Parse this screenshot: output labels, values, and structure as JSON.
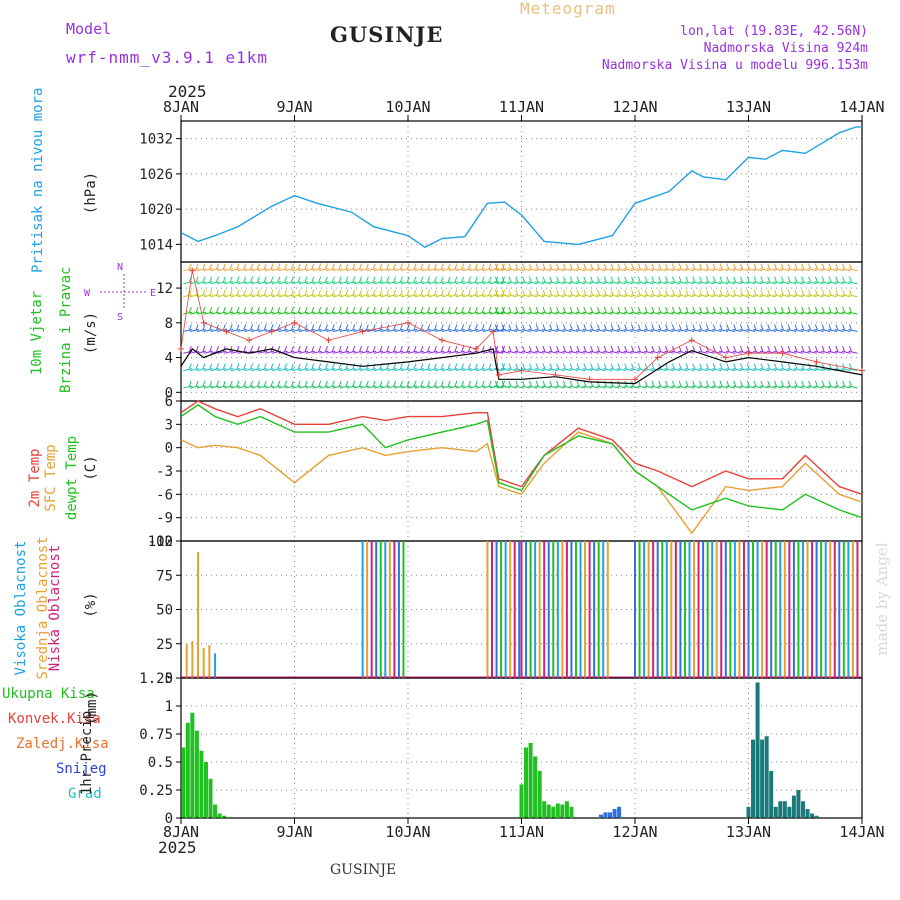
{
  "header": {
    "model_label": "Model",
    "model_name": "wrf-nmm_v3.9.1 e1km",
    "location": "GUSINJE",
    "chart_kind": "Meteogram",
    "lonlat": "lon,lat (19.83E, 42.56N)",
    "elevation": "Nadmorska Visina 924m",
    "model_elevation": "Nadmorska Visina u modelu 996.153m",
    "footer_location": "GUSINJE",
    "watermark": "made by Angel",
    "year_top": "2025",
    "year_bottom": "2025"
  },
  "colors": {
    "pressure": "#1fa0e6",
    "red": "#e8413a",
    "orange": "#e8a033",
    "green": "#20c020",
    "purple": "#9a30e0",
    "magenta": "#d0207a",
    "blue": "#2f6fe0",
    "cyan": "#20c0c0",
    "grid": "#888888"
  },
  "chart_data": [
    {
      "type": "line",
      "name": "pressure",
      "ylabel_main": "Pritisak na nivou mora",
      "ylabel_unit": "(hPa)",
      "ylim": [
        1011,
        1035
      ],
      "yticks": [
        1014,
        1020,
        1026,
        1032
      ],
      "x": [
        0,
        0.15,
        0.3,
        0.5,
        0.8,
        1.0,
        1.2,
        1.5,
        1.7,
        2.0,
        2.15,
        2.3,
        2.5,
        2.7,
        2.85,
        3.0,
        3.2,
        3.5,
        3.8,
        4.0,
        4.3,
        4.5,
        4.6,
        4.8,
        5.0,
        5.15,
        5.3,
        5.5,
        5.8,
        5.95,
        6.0
      ],
      "values": [
        1016,
        1014.5,
        1015.5,
        1017,
        1020.5,
        1022.3,
        1021,
        1019.5,
        1017,
        1015.5,
        1013.5,
        1015,
        1015.3,
        1021,
        1021.2,
        1019,
        1014.5,
        1014,
        1015.5,
        1021,
        1023,
        1026.5,
        1025.5,
        1025,
        1028.8,
        1028.5,
        1030,
        1029.5,
        1033,
        1034,
        1034
      ]
    },
    {
      "type": "line",
      "name": "wind",
      "ylabel_main": "10m Vjetar",
      "ylabel_second": "Brzina i Pravac",
      "ylabel_unit": "(m/s)",
      "compass": {
        "n": "N",
        "s": "S",
        "w": "W",
        "e": "E"
      },
      "ylim": [
        -1,
        15
      ],
      "yticks": [
        0,
        4,
        8,
        12
      ],
      "x": [
        0,
        0.1,
        0.2,
        0.4,
        0.6,
        0.8,
        1.0,
        1.3,
        1.6,
        2.0,
        2.3,
        2.6,
        2.75,
        2.8,
        3.0,
        3.3,
        3.6,
        4.0,
        4.3,
        4.5,
        4.8,
        5.0,
        5.3,
        5.6,
        6.0
      ],
      "values": [
        3,
        5,
        4,
        5,
        4.5,
        5,
        4,
        3.5,
        3,
        3.5,
        4,
        4.5,
        5,
        1.5,
        1.5,
        1.8,
        1.2,
        1.0,
        3.5,
        4.8,
        3.5,
        4,
        3.5,
        3,
        2
      ],
      "gust_x": [
        0,
        0.1,
        0.2,
        0.4,
        0.6,
        0.8,
        1.0,
        1.3,
        1.6,
        2.0,
        2.3,
        2.6,
        2.75,
        2.8,
        3.0,
        3.3,
        3.6,
        4.0,
        4.2,
        4.5,
        4.8,
        5.0,
        5.3,
        5.6,
        6.0
      ],
      "gust_values": [
        5,
        14,
        8,
        7,
        6,
        7,
        8,
        6,
        7,
        8,
        6,
        5,
        7,
        2,
        2.5,
        2,
        1.5,
        1.5,
        4,
        6,
        4,
        4.5,
        4.5,
        3.5,
        2.5
      ],
      "barb_levels": [
        0.5,
        2.5,
        4.5,
        7,
        9,
        11,
        12.5,
        14
      ],
      "barb_colors": [
        "#20c060",
        "#20c0c0",
        "#9a30e0",
        "#2f6fe0",
        "#20c020",
        "#c8c820",
        "#20d080",
        "#e8a033"
      ]
    },
    {
      "type": "line",
      "name": "temperature",
      "ylabel_main": "2m Temp",
      "ylabel_second": "SFC Temp",
      "ylabel_third": "dewpt Temp",
      "ylabel_unit": "(C)",
      "ylim": [
        -12,
        6
      ],
      "yticks": [
        -12,
        -9,
        -6,
        -3,
        0,
        3,
        6
      ],
      "x": [
        0,
        0.15,
        0.3,
        0.5,
        0.7,
        1.0,
        1.3,
        1.6,
        1.8,
        2.0,
        2.3,
        2.6,
        2.7,
        2.8,
        3.0,
        3.2,
        3.5,
        3.8,
        4.0,
        4.2,
        4.5,
        4.8,
        5.0,
        5.3,
        5.5,
        5.8,
        6.0
      ],
      "series": [
        {
          "name": "2m Temp",
          "values": [
            4.5,
            6,
            5,
            4,
            5,
            3,
            3,
            4,
            3.5,
            4,
            4,
            4.5,
            4.5,
            -4,
            -5,
            -1,
            2.5,
            1,
            -2,
            -3,
            -5,
            -3,
            -4,
            -4,
            -1,
            -5,
            -6
          ]
        },
        {
          "name": "SFC Temp",
          "values": [
            1,
            0,
            0.3,
            0,
            -1,
            -4.5,
            -1,
            0,
            -1,
            -0.5,
            0,
            -0.5,
            0.5,
            -5,
            -6,
            -2,
            2,
            0.5,
            -3,
            -5,
            -11,
            -5,
            -5.5,
            -5,
            -2,
            -6,
            -7
          ]
        },
        {
          "name": "dewpt Temp",
          "values": [
            4,
            5.5,
            4,
            3,
            4,
            2,
            2,
            3,
            0,
            1,
            2,
            3,
            3.5,
            -4.5,
            -5.5,
            -1,
            1.5,
            0.5,
            -3,
            -5,
            -8,
            -6.5,
            -7.5,
            -8,
            -6,
            -8,
            -9
          ]
        }
      ]
    },
    {
      "type": "bar",
      "name": "cloud_cover",
      "ylabel_main": "Visoka Oblacnost",
      "ylabel_second": "Srednja Oblacnost",
      "ylabel_third": "Niska Oblacnost",
      "ylabel_unit": "(%)",
      "ylim": [
        0,
        100
      ],
      "yticks": [
        0,
        25,
        50,
        75,
        100
      ],
      "notes": "Mid cloud spikes day 0; high cloud 100% around day 1.6-2.0; mixed 100% bars from day 2.7 onward",
      "segments": [
        {
          "from": 1.6,
          "to": 2.0,
          "value": 100
        },
        {
          "from": 2.7,
          "to": 3.0,
          "value": 100
        },
        {
          "from": 3.0,
          "to": 3.8,
          "value": 100
        },
        {
          "from": 4.0,
          "to": 6.0,
          "value": 100
        }
      ],
      "spikes": [
        {
          "x": 0.05,
          "value": 25
        },
        {
          "x": 0.1,
          "value": 27
        },
        {
          "x": 0.15,
          "value": 92
        },
        {
          "x": 0.2,
          "value": 22
        },
        {
          "x": 0.25,
          "value": 24
        },
        {
          "x": 0.3,
          "value": 18
        }
      ]
    },
    {
      "type": "bar",
      "name": "precipitation",
      "legend": [
        "Ukupna Kisa",
        "Konvek.Kisa",
        "Zaledj.Kisa",
        "Snijeg",
        "Grad"
      ],
      "ylabel_main": "1hr Precip",
      "ylabel_unit": "(mm)",
      "ylim": [
        0,
        1.25
      ],
      "yticks": [
        0,
        0.25,
        0.5,
        0.75,
        1,
        1.25
      ],
      "x": [
        0.02,
        0.06,
        0.1,
        0.14,
        0.18,
        0.22,
        0.26,
        0.3,
        0.34,
        0.38,
        0.42,
        3.0,
        3.04,
        3.08,
        3.12,
        3.16,
        3.2,
        3.24,
        3.28,
        3.32,
        3.36,
        3.4,
        3.44,
        3.7,
        3.74,
        3.78,
        3.82,
        3.86,
        5.0,
        5.04,
        5.08,
        5.12,
        5.16,
        5.2,
        5.24,
        5.28,
        5.32,
        5.36,
        5.4,
        5.44,
        5.48,
        5.52,
        5.56,
        5.6
      ],
      "values": [
        0.63,
        0.85,
        0.94,
        0.78,
        0.6,
        0.5,
        0.35,
        0.12,
        0.04,
        0.02,
        0.01,
        0.3,
        0.63,
        0.67,
        0.55,
        0.42,
        0.15,
        0.12,
        0.1,
        0.13,
        0.12,
        0.15,
        0.1,
        0.03,
        0.05,
        0.05,
        0.08,
        0.1,
        0.1,
        0.7,
        1.21,
        0.7,
        0.73,
        0.42,
        0.1,
        0.15,
        0.15,
        0.1,
        0.2,
        0.25,
        0.15,
        0.08,
        0.04,
        0.02
      ],
      "series_colors": [
        "#20c020",
        "#20c020",
        "#20c020",
        "#20c020",
        "#20c020",
        "#20c020",
        "#20c020",
        "#20c020",
        "#20c020",
        "#20c020",
        "#20c020",
        "#20c020",
        "#20c020",
        "#20c020",
        "#20c020",
        "#20c020",
        "#20c020",
        "#20c020",
        "#20c020",
        "#20c020",
        "#20c020",
        "#20c020",
        "#20c020",
        "#2f6fe0",
        "#2f6fe0",
        "#2f6fe0",
        "#2f6fe0",
        "#2f6fe0",
        "#1a7a7a",
        "#1a7a7a",
        "#1a7a7a",
        "#1a7a7a",
        "#1a7a7a",
        "#1a7a7a",
        "#1a7a7a",
        "#1a7a7a",
        "#1a7a7a",
        "#1a7a7a",
        "#1a7a7a",
        "#1a7a7a",
        "#1a7a7a",
        "#1a7a7a",
        "#1a7a7a",
        "#1a7a7a"
      ]
    }
  ],
  "x_axis": {
    "days": [
      "8JAN",
      "9JAN",
      "10JAN",
      "11JAN",
      "12JAN",
      "13JAN",
      "14JAN"
    ],
    "range": [
      0,
      6
    ]
  }
}
